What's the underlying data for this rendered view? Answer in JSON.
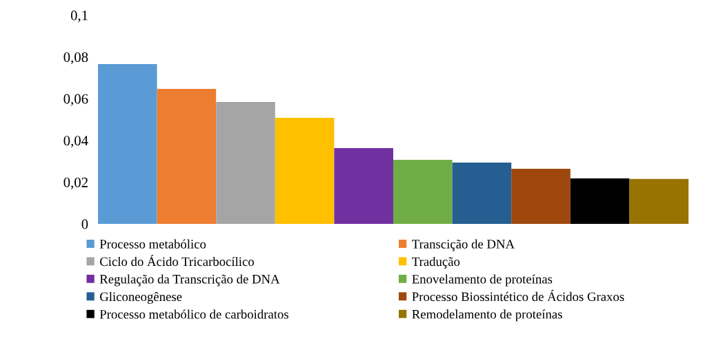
{
  "chart_data": {
    "type": "bar",
    "categories": [
      null
    ],
    "series": [
      {
        "name": "Processo metabólico",
        "color": "#5b9bd5",
        "values": [
          0.0766
        ]
      },
      {
        "name": "Transcição de DNA",
        "color": "#ed7d31",
        "values": [
          0.0647
        ]
      },
      {
        "name": "Ciclo do Ácido Tricarbocílico",
        "color": "#a5a5a5",
        "values": [
          0.0584
        ]
      },
      {
        "name": "Tradução",
        "color": "#ffc000",
        "values": [
          0.0508
        ]
      },
      {
        "name": "Regulação da Transcrição de DNA",
        "color": "#7030a0",
        "values": [
          0.0363
        ]
      },
      {
        "name": "Enovelamento de proteínas",
        "color": "#70ad47",
        "values": [
          0.0307
        ]
      },
      {
        "name": "Gliconeogênese",
        "color": "#255e91",
        "values": [
          0.0294
        ]
      },
      {
        "name": "Processo Biossintético de Ácidos Graxos",
        "color": "#9e480e",
        "values": [
          0.0264
        ]
      },
      {
        "name": "Processo metabólico de carboidratos",
        "color": "#000000",
        "values": [
          0.0218
        ]
      },
      {
        "name": "Remodelamento de proteínas",
        "color": "#997300",
        "values": [
          0.0215
        ]
      }
    ],
    "ylim": [
      0,
      0.1
    ],
    "yticks": [
      {
        "value": 0,
        "label": "0"
      },
      {
        "value": 0.02,
        "label": "0,02"
      },
      {
        "value": 0.04,
        "label": "0,04"
      },
      {
        "value": 0.06,
        "label": "0,06"
      },
      {
        "value": 0.08,
        "label": "0,08"
      },
      {
        "value": 0.1,
        "label": "0,1"
      }
    ],
    "grid": false,
    "legend": "bottom"
  }
}
